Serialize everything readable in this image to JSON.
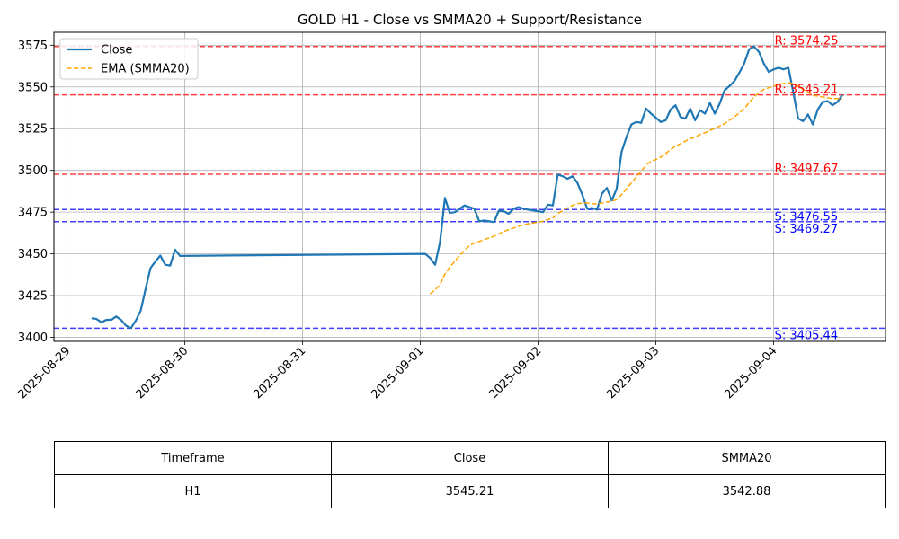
{
  "chart_data": {
    "type": "line",
    "title": "GOLD H1 - Close vs SMMA20 + Support/Resistance",
    "xlabel": "",
    "ylabel": "",
    "x_ticks": [
      "2025-08-29",
      "2025-08-30",
      "2025-08-31",
      "2025-09-01",
      "2025-09-02",
      "2025-09-03",
      "2025-09-04"
    ],
    "y_ticks": [
      3400,
      3425,
      3450,
      3475,
      3500,
      3525,
      3550,
      3575
    ],
    "xlim": [
      "2025-08-28T21:19",
      "2025-09-04T22:48"
    ],
    "ylim": [
      3397.6,
      3582.7
    ],
    "grid": true,
    "legend_position": "upper-left",
    "series": [
      {
        "name": "Close",
        "color": "#1f77b4",
        "style": "solid",
        "points": [
          [
            "2025-08-29T05:00",
            3411.5
          ],
          [
            "2025-08-29T06:00",
            3411.0
          ],
          [
            "2025-08-29T07:00",
            3409.0
          ],
          [
            "2025-08-29T08:00",
            3410.5
          ],
          [
            "2025-08-29T09:00",
            3410.5
          ],
          [
            "2025-08-29T10:00",
            3412.5
          ],
          [
            "2025-08-29T11:00",
            3410.5
          ],
          [
            "2025-08-29T12:00",
            3407.0
          ],
          [
            "2025-08-29T13:00",
            3405.5
          ],
          [
            "2025-08-29T14:00",
            3410.0
          ],
          [
            "2025-08-29T15:00",
            3416.0
          ],
          [
            "2025-08-29T16:00",
            3429.0
          ],
          [
            "2025-08-29T17:00",
            3441.5
          ],
          [
            "2025-08-29T18:00",
            3445.5
          ],
          [
            "2025-08-29T19:00",
            3449.0
          ],
          [
            "2025-08-29T20:00",
            3443.5
          ],
          [
            "2025-08-29T21:00",
            3443.0
          ],
          [
            "2025-08-29T22:00",
            3452.5
          ],
          [
            "2025-08-29T23:00",
            3448.8
          ],
          [
            "2025-09-01T01:00",
            3450.0
          ],
          [
            "2025-09-01T02:00",
            3447.5
          ],
          [
            "2025-09-01T03:00",
            3443.5
          ],
          [
            "2025-09-01T04:00",
            3457.0
          ],
          [
            "2025-09-01T05:00",
            3483.5
          ],
          [
            "2025-09-01T06:00",
            3474.5
          ],
          [
            "2025-09-01T07:00",
            3475.0
          ],
          [
            "2025-09-01T08:00",
            3477.0
          ],
          [
            "2025-09-01T09:00",
            3479.0
          ],
          [
            "2025-09-01T10:00",
            3478.0
          ],
          [
            "2025-09-01T11:00",
            3477.0
          ],
          [
            "2025-09-01T12:00",
            3469.5
          ],
          [
            "2025-09-01T13:00",
            3470.0
          ],
          [
            "2025-09-01T14:00",
            3469.5
          ],
          [
            "2025-09-01T15:00",
            3469.0
          ],
          [
            "2025-09-01T16:00",
            3476.0
          ],
          [
            "2025-09-01T17:00",
            3475.5
          ],
          [
            "2025-09-01T18:00",
            3474.0
          ],
          [
            "2025-09-01T19:00",
            3477.0
          ],
          [
            "2025-09-01T20:00",
            3478.0
          ],
          [
            "2025-09-01T21:00",
            3477.0
          ],
          [
            "2025-09-01T22:00",
            3476.5
          ],
          [
            "2025-09-01T23:00",
            3476.0
          ],
          [
            "2025-09-02T00:00",
            3475.5
          ],
          [
            "2025-09-02T01:00",
            3475.0
          ],
          [
            "2025-09-02T02:00",
            3479.5
          ],
          [
            "2025-09-02T03:00",
            3479.0
          ],
          [
            "2025-09-02T04:00",
            3497.5
          ],
          [
            "2025-09-02T05:00",
            3496.5
          ],
          [
            "2025-09-02T06:00",
            3495.0
          ],
          [
            "2025-09-02T07:00",
            3496.5
          ],
          [
            "2025-09-02T08:00",
            3492.5
          ],
          [
            "2025-09-02T09:00",
            3485.5
          ],
          [
            "2025-09-02T10:00",
            3477.0
          ],
          [
            "2025-09-02T11:00",
            3477.5
          ],
          [
            "2025-09-02T12:00",
            3476.5
          ],
          [
            "2025-09-02T13:00",
            3486.0
          ],
          [
            "2025-09-02T14:00",
            3489.5
          ],
          [
            "2025-09-02T15:00",
            3482.0
          ],
          [
            "2025-09-02T16:00",
            3489.0
          ],
          [
            "2025-09-02T17:00",
            3511.0
          ],
          [
            "2025-09-02T18:00",
            3520.0
          ],
          [
            "2025-09-02T19:00",
            3527.5
          ],
          [
            "2025-09-02T20:00",
            3529.0
          ],
          [
            "2025-09-02T21:00",
            3528.5
          ],
          [
            "2025-09-02T22:00",
            3537.0
          ],
          [
            "2025-09-02T23:00",
            3534.0
          ],
          [
            "2025-09-03T00:00",
            3531.5
          ],
          [
            "2025-09-03T01:00",
            3529.0
          ],
          [
            "2025-09-03T02:00",
            3530.0
          ],
          [
            "2025-09-03T03:00",
            3536.5
          ],
          [
            "2025-09-03T04:00",
            3539.0
          ],
          [
            "2025-09-03T05:00",
            3532.0
          ],
          [
            "2025-09-03T06:00",
            3531.0
          ],
          [
            "2025-09-03T07:00",
            3537.0
          ],
          [
            "2025-09-03T08:00",
            3530.0
          ],
          [
            "2025-09-03T09:00",
            3536.0
          ],
          [
            "2025-09-03T10:00",
            3534.0
          ],
          [
            "2025-09-03T11:00",
            3540.5
          ],
          [
            "2025-09-03T12:00",
            3534.0
          ],
          [
            "2025-09-03T13:00",
            3540.0
          ],
          [
            "2025-09-03T14:00",
            3548.0
          ],
          [
            "2025-09-03T15:00",
            3550.5
          ],
          [
            "2025-09-03T16:00",
            3553.5
          ],
          [
            "2025-09-03T17:00",
            3558.5
          ],
          [
            "2025-09-03T18:00",
            3564.0
          ],
          [
            "2025-09-03T19:00",
            3572.5
          ],
          [
            "2025-09-03T20:00",
            3574.25
          ],
          [
            "2025-09-03T21:00",
            3571.0
          ],
          [
            "2025-09-03T22:00",
            3564.0
          ],
          [
            "2025-09-03T23:00",
            3559.0
          ],
          [
            "2025-09-04T00:00",
            3560.5
          ],
          [
            "2025-09-04T01:00",
            3561.5
          ],
          [
            "2025-09-04T02:00",
            3560.5
          ],
          [
            "2025-09-04T03:00",
            3561.5
          ],
          [
            "2025-09-04T04:00",
            3547.0
          ],
          [
            "2025-09-04T05:00",
            3531.0
          ],
          [
            "2025-09-04T06:00",
            3529.5
          ],
          [
            "2025-09-04T07:00",
            3533.5
          ],
          [
            "2025-09-04T08:00",
            3527.5
          ],
          [
            "2025-09-04T09:00",
            3536.5
          ],
          [
            "2025-09-04T10:00",
            3541.0
          ],
          [
            "2025-09-04T11:00",
            3541.5
          ],
          [
            "2025-09-04T12:00",
            3539.0
          ],
          [
            "2025-09-04T13:00",
            3541.0
          ],
          [
            "2025-09-04T14:00",
            3545.21
          ]
        ]
      },
      {
        "name": "EMA (SMMA20)",
        "color": "#ffa500",
        "style": "dashed",
        "points": [
          [
            "2025-09-01T02:00",
            3426.0
          ],
          [
            "2025-09-01T03:00",
            3428.5
          ],
          [
            "2025-09-01T04:00",
            3431.5
          ],
          [
            "2025-09-01T05:00",
            3438.0
          ],
          [
            "2025-09-01T06:00",
            3442.0
          ],
          [
            "2025-09-01T07:00",
            3445.5
          ],
          [
            "2025-09-01T08:00",
            3449.0
          ],
          [
            "2025-09-01T09:00",
            3452.0
          ],
          [
            "2025-09-01T10:00",
            3455.0
          ],
          [
            "2025-09-01T11:00",
            3456.5
          ],
          [
            "2025-09-01T12:00",
            3457.5
          ],
          [
            "2025-09-01T13:00",
            3458.5
          ],
          [
            "2025-09-01T14:00",
            3459.5
          ],
          [
            "2025-09-01T15:00",
            3460.5
          ],
          [
            "2025-09-01T16:00",
            3462.0
          ],
          [
            "2025-09-01T17:00",
            3463.5
          ],
          [
            "2025-09-01T18:00",
            3464.5
          ],
          [
            "2025-09-01T19:00",
            3465.5
          ],
          [
            "2025-09-01T20:00",
            3466.5
          ],
          [
            "2025-09-01T21:00",
            3467.5
          ],
          [
            "2025-09-01T22:00",
            3468.0
          ],
          [
            "2025-09-01T23:00",
            3468.5
          ],
          [
            "2025-09-02T00:00",
            3469.0
          ],
          [
            "2025-09-02T01:00",
            3469.5
          ],
          [
            "2025-09-02T02:00",
            3470.5
          ],
          [
            "2025-09-02T03:00",
            3471.5
          ],
          [
            "2025-09-02T04:00",
            3474.0
          ],
          [
            "2025-09-02T05:00",
            3476.0
          ],
          [
            "2025-09-02T06:00",
            3477.5
          ],
          [
            "2025-09-02T07:00",
            3479.0
          ],
          [
            "2025-09-02T08:00",
            3480.0
          ],
          [
            "2025-09-02T09:00",
            3480.5
          ],
          [
            "2025-09-02T10:00",
            3480.5
          ],
          [
            "2025-09-02T11:00",
            3480.0
          ],
          [
            "2025-09-02T12:00",
            3480.0
          ],
          [
            "2025-09-02T13:00",
            3480.5
          ],
          [
            "2025-09-02T14:00",
            3481.0
          ],
          [
            "2025-09-02T15:00",
            3481.5
          ],
          [
            "2025-09-02T16:00",
            3482.5
          ],
          [
            "2025-09-02T17:00",
            3485.5
          ],
          [
            "2025-09-02T18:00",
            3489.0
          ],
          [
            "2025-09-02T19:00",
            3492.5
          ],
          [
            "2025-09-02T20:00",
            3496.0
          ],
          [
            "2025-09-02T21:00",
            3499.5
          ],
          [
            "2025-09-02T22:00",
            3503.0
          ],
          [
            "2025-09-02T23:00",
            3505.5
          ],
          [
            "2025-09-03T00:00",
            3506.5
          ],
          [
            "2025-09-03T01:00",
            3508.0
          ],
          [
            "2025-09-03T02:00",
            3510.0
          ],
          [
            "2025-09-03T03:00",
            3512.5
          ],
          [
            "2025-09-03T04:00",
            3514.5
          ],
          [
            "2025-09-03T05:00",
            3516.0
          ],
          [
            "2025-09-03T06:00",
            3517.5
          ],
          [
            "2025-09-03T07:00",
            3519.0
          ],
          [
            "2025-09-03T08:00",
            3520.0
          ],
          [
            "2025-09-03T09:00",
            3521.5
          ],
          [
            "2025-09-03T10:00",
            3522.5
          ],
          [
            "2025-09-03T11:00",
            3524.0
          ],
          [
            "2025-09-03T12:00",
            3525.0
          ],
          [
            "2025-09-03T13:00",
            3526.5
          ],
          [
            "2025-09-03T14:00",
            3528.0
          ],
          [
            "2025-09-03T15:00",
            3530.0
          ],
          [
            "2025-09-03T16:00",
            3532.0
          ],
          [
            "2025-09-03T17:00",
            3534.5
          ],
          [
            "2025-09-03T18:00",
            3537.0
          ],
          [
            "2025-09-03T19:00",
            3540.5
          ],
          [
            "2025-09-03T20:00",
            3544.0
          ],
          [
            "2025-09-03T21:00",
            3546.5
          ],
          [
            "2025-09-03T22:00",
            3548.5
          ],
          [
            "2025-09-03T23:00",
            3549.5
          ],
          [
            "2025-09-04T00:00",
            3550.5
          ],
          [
            "2025-09-04T01:00",
            3551.5
          ],
          [
            "2025-09-04T02:00",
            3552.0
          ],
          [
            "2025-09-04T03:00",
            3552.5
          ],
          [
            "2025-09-04T04:00",
            3552.0
          ],
          [
            "2025-09-04T05:00",
            3550.5
          ],
          [
            "2025-09-04T06:00",
            3548.5
          ],
          [
            "2025-09-04T07:00",
            3547.0
          ],
          [
            "2025-09-04T08:00",
            3545.0
          ],
          [
            "2025-09-04T09:00",
            3544.5
          ],
          [
            "2025-09-04T10:00",
            3544.0
          ],
          [
            "2025-09-04T11:00",
            3543.5
          ],
          [
            "2025-09-04T12:00",
            3543.0
          ],
          [
            "2025-09-04T13:00",
            3543.0
          ],
          [
            "2025-09-04T14:00",
            3542.88
          ]
        ]
      }
    ],
    "levels": [
      {
        "kind": "resistance",
        "value": 3574.25,
        "label": "R: 3574.25",
        "color": "#ff0000"
      },
      {
        "kind": "resistance",
        "value": 3545.21,
        "label": "R: 3545.21",
        "color": "#ff0000"
      },
      {
        "kind": "resistance",
        "value": 3497.67,
        "label": "R: 3497.67",
        "color": "#ff0000"
      },
      {
        "kind": "support",
        "value": 3476.55,
        "label": "S: 3476.55",
        "color": "#0000ff"
      },
      {
        "kind": "support",
        "value": 3469.27,
        "label": "S: 3469.27",
        "color": "#0000ff"
      },
      {
        "kind": "support",
        "value": 3405.44,
        "label": "S: 3405.44",
        "color": "#0000ff"
      }
    ]
  },
  "table": {
    "headers": [
      "Timeframe",
      "Close",
      "SMMA20"
    ],
    "rows": [
      [
        "H1",
        "3545.21",
        "3542.88"
      ]
    ]
  }
}
